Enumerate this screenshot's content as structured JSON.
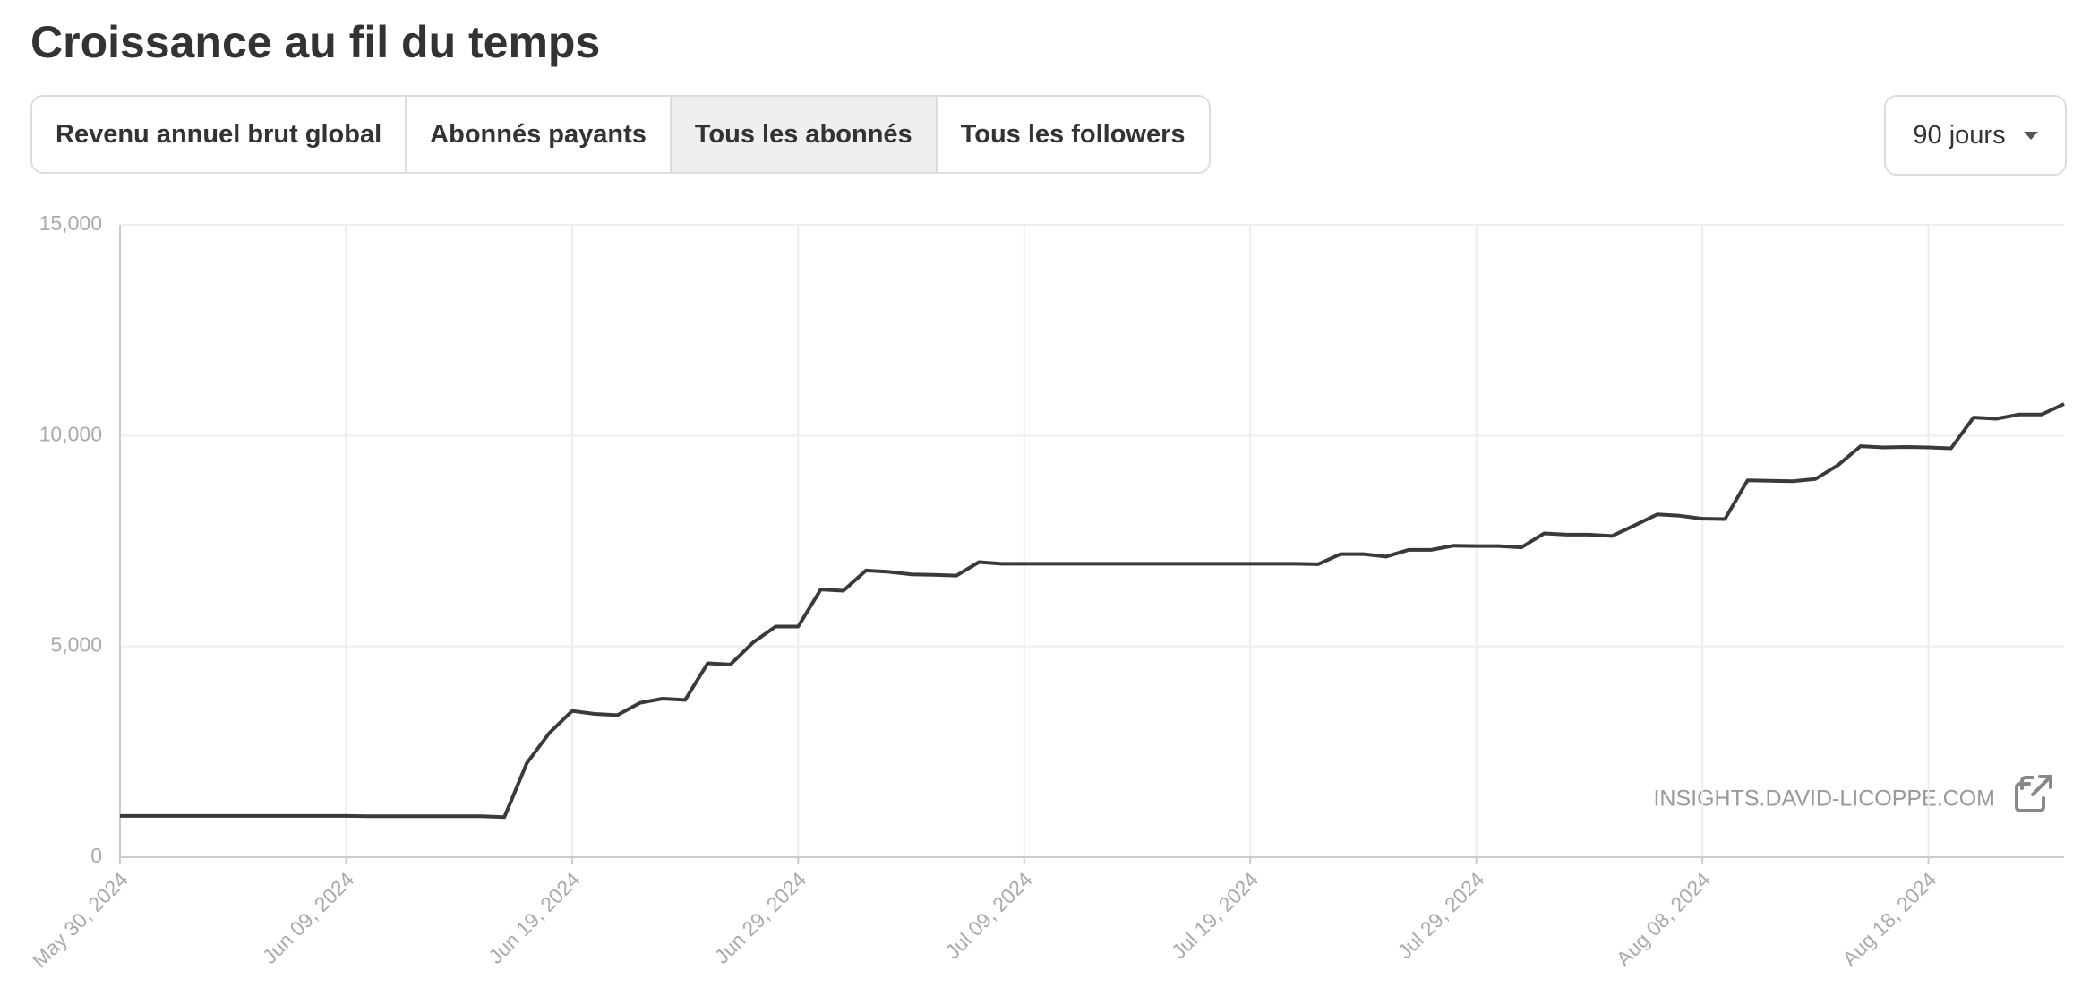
{
  "header": {
    "title": "Croissance au fil du temps"
  },
  "tabs": [
    "Revenu annuel brut global",
    "Abonnés payants",
    "Tous les abonnés",
    "Tous les followers"
  ],
  "period": "90 jours",
  "watermark": "INSIGHTS.DAVID-LICOPPE.COM",
  "chart_data": {
    "type": "line",
    "color": "#3a3a3a",
    "grid": true,
    "x": [
      "2024-05-30",
      "2024-05-31",
      "2024-06-01",
      "2024-06-02",
      "2024-06-03",
      "2024-06-04",
      "2024-06-05",
      "2024-06-06",
      "2024-06-07",
      "2024-06-08",
      "2024-06-09",
      "2024-06-10",
      "2024-06-11",
      "2024-06-12",
      "2024-06-13",
      "2024-06-14",
      "2024-06-15",
      "2024-06-16",
      "2024-06-17",
      "2024-06-18",
      "2024-06-19",
      "2024-06-20",
      "2024-06-21",
      "2024-06-22",
      "2024-06-23",
      "2024-06-24",
      "2024-06-25",
      "2024-06-26",
      "2024-06-27",
      "2024-06-28",
      "2024-06-29",
      "2024-06-30",
      "2024-07-01",
      "2024-07-02",
      "2024-07-03",
      "2024-07-04",
      "2024-07-05",
      "2024-07-06",
      "2024-07-07",
      "2024-07-08",
      "2024-07-09",
      "2024-07-10",
      "2024-07-11",
      "2024-07-12",
      "2024-07-13",
      "2024-07-14",
      "2024-07-15",
      "2024-07-16",
      "2024-07-17",
      "2024-07-18",
      "2024-07-19",
      "2024-07-20",
      "2024-07-21",
      "2024-07-22",
      "2024-07-23",
      "2024-07-24",
      "2024-07-25",
      "2024-07-26",
      "2024-07-27",
      "2024-07-28",
      "2024-07-29",
      "2024-07-30",
      "2024-07-31",
      "2024-08-01",
      "2024-08-02",
      "2024-08-03",
      "2024-08-04",
      "2024-08-05",
      "2024-08-06",
      "2024-08-07",
      "2024-08-08",
      "2024-08-09",
      "2024-08-10",
      "2024-08-11",
      "2024-08-12",
      "2024-08-13",
      "2024-08-14",
      "2024-08-15",
      "2024-08-16",
      "2024-08-17",
      "2024-08-18",
      "2024-08-19",
      "2024-08-20",
      "2024-08-21",
      "2024-08-22",
      "2024-08-23",
      "2024-08-24"
    ],
    "values": [
      980,
      980,
      980,
      980,
      980,
      980,
      980,
      980,
      980,
      980,
      980,
      970,
      970,
      970,
      970,
      970,
      970,
      950,
      2235,
      2950,
      3470,
      3400,
      3370,
      3660,
      3760,
      3730,
      4600,
      4570,
      5090,
      5470,
      5470,
      6350,
      6320,
      6800,
      6770,
      6710,
      6700,
      6680,
      7000,
      6960,
      6960,
      6960,
      6960,
      6960,
      6960,
      6960,
      6960,
      6960,
      6960,
      6960,
      6960,
      6960,
      6960,
      6950,
      7190,
      7190,
      7130,
      7290,
      7290,
      7390,
      7380,
      7380,
      7350,
      7680,
      7650,
      7650,
      7620,
      7870,
      8130,
      8100,
      8030,
      8020,
      8940,
      8930,
      8920,
      8970,
      9300,
      9750,
      9720,
      9730,
      9720,
      9700,
      10430,
      10400,
      10500,
      10500,
      10750
    ],
    "xlim": [
      "2024-05-30",
      "2024-08-24"
    ],
    "xticks": [
      {
        "value": "2024-05-30",
        "label": "May 30, 2024"
      },
      {
        "value": "2024-06-09",
        "label": "Jun 09, 2024"
      },
      {
        "value": "2024-06-19",
        "label": "Jun 19, 2024"
      },
      {
        "value": "2024-06-29",
        "label": "Jun 29, 2024"
      },
      {
        "value": "2024-07-09",
        "label": "Jul 09, 2024"
      },
      {
        "value": "2024-07-19",
        "label": "Jul 19, 2024"
      },
      {
        "value": "2024-07-29",
        "label": "Jul 29, 2024"
      },
      {
        "value": "2024-08-08",
        "label": "Aug 08, 2024"
      },
      {
        "value": "2024-08-18",
        "label": "Aug 18, 2024"
      }
    ],
    "ylim": [
      0,
      15000
    ],
    "yticks": [
      0,
      {
        "value": 5000,
        "label": "5,000"
      },
      {
        "value": 10000,
        "label": "10,000"
      },
      {
        "value": 15000,
        "label": "15,000"
      }
    ]
  }
}
